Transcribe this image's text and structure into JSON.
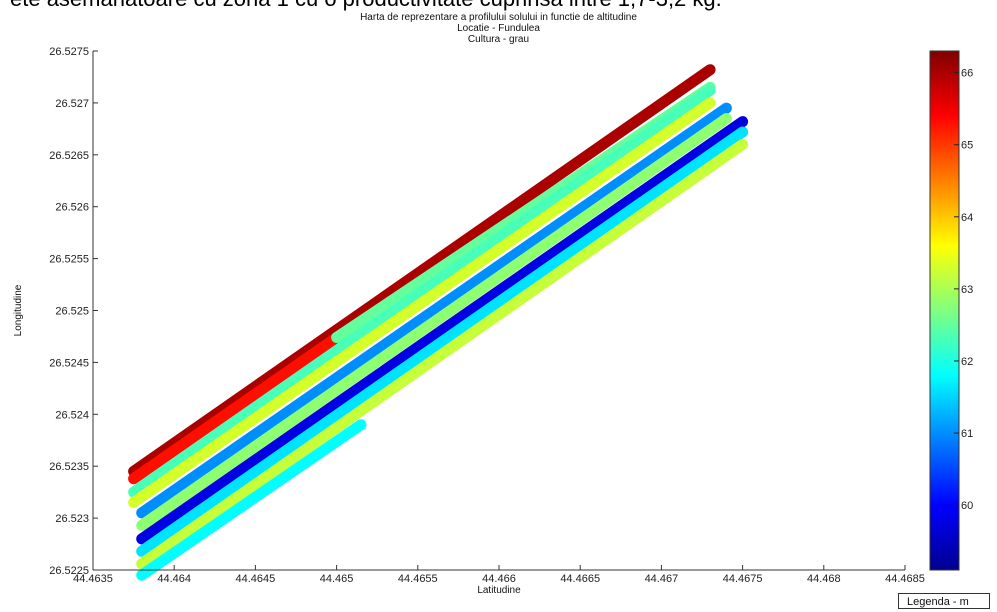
{
  "page": {
    "caption_fragment": "ete asemanatoare cu zona 1 cu o productivitate cuprinsa intre 1,7-3,2 kg."
  },
  "chart_data": {
    "type": "scatter",
    "title": "Harta de reprezentare a profilului solului in functie de altitudine",
    "subtitle_1": "Locatie - Fundulea",
    "subtitle_2": "Cultura - grau",
    "xlabel": "Latitudine",
    "ylabel": "Longitudine",
    "xlim": [
      44.4635,
      44.4685
    ],
    "ylim": [
      26.5225,
      26.5275
    ],
    "xticks": [
      "44.4635",
      "44.464",
      "44.4645",
      "44.465",
      "44.4655",
      "44.466",
      "44.4665",
      "44.467",
      "44.4675",
      "44.468",
      "44.4685"
    ],
    "yticks": [
      "26.5225",
      "26.523",
      "26.5235",
      "26.524",
      "26.5245",
      "26.525",
      "26.5255",
      "26.526",
      "26.5265",
      "26.527",
      "26.5275"
    ],
    "colorbar": {
      "min": 59.1,
      "max": 66.3,
      "ticks": [
        "60",
        "61",
        "62",
        "63",
        "64",
        "65",
        "66"
      ],
      "colormap": "jet"
    },
    "legend_label": "Legenda - m",
    "series": [
      {
        "x": [
          44.46375,
          44.4673
        ],
        "y": [
          26.52345,
          26.52732
        ],
        "value": 66.0
      },
      {
        "x": [
          44.46375,
          44.465
        ],
        "y": [
          26.52338,
          26.52474
        ],
        "value": 65.3
      },
      {
        "x": [
          44.465,
          44.4673
        ],
        "y": [
          26.52474,
          26.52715
        ],
        "value": 62.5
      },
      {
        "x": [
          44.46375,
          44.4673
        ],
        "y": [
          26.52325,
          26.52712
        ],
        "value": 62.3
      },
      {
        "x": [
          44.46375,
          44.4673
        ],
        "y": [
          26.52315,
          26.527
        ],
        "value": 63.3
      },
      {
        "x": [
          44.4638,
          44.4674
        ],
        "y": [
          26.52305,
          26.52695
        ],
        "value": 61.0
      },
      {
        "x": [
          44.4638,
          44.4674
        ],
        "y": [
          26.52293,
          26.52685
        ],
        "value": 62.8
      },
      {
        "x": [
          44.4638,
          44.4675
        ],
        "y": [
          26.5228,
          26.52682
        ],
        "value": 59.8
      },
      {
        "x": [
          44.4638,
          44.4675
        ],
        "y": [
          26.52268,
          26.52672
        ],
        "value": 61.6
      },
      {
        "x": [
          44.4638,
          44.4675
        ],
        "y": [
          26.52256,
          26.5266
        ],
        "value": 63.2
      },
      {
        "x": [
          44.4638,
          44.46515
        ],
        "y": [
          26.52245,
          26.5239
        ],
        "value": 61.8
      }
    ]
  }
}
